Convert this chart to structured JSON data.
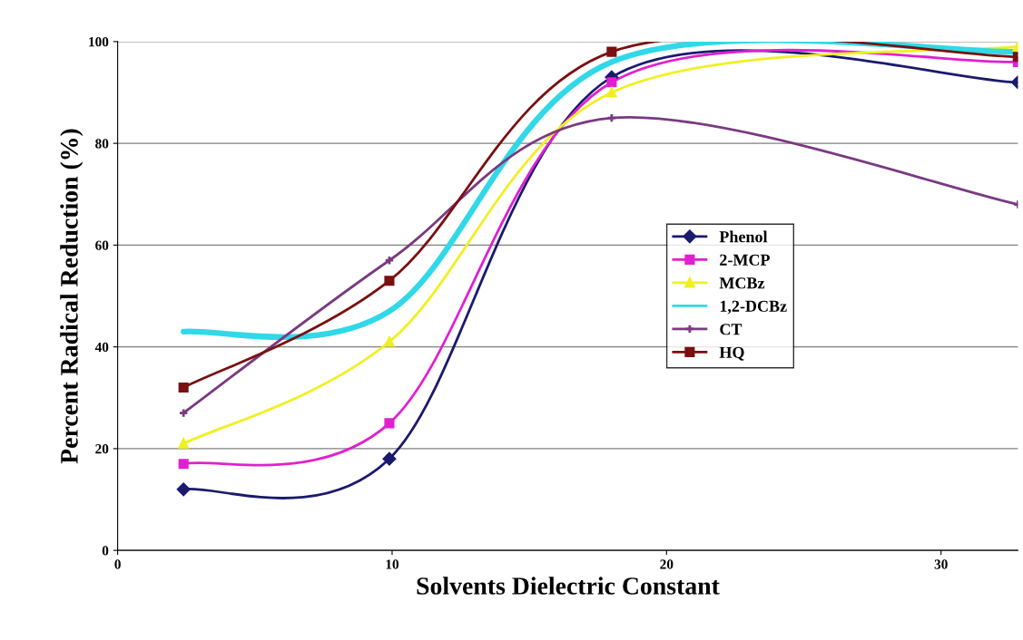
{
  "chart_data": {
    "type": "line",
    "xlabel": "Solvents Dielectric Constant",
    "ylabel": "Percent Radical Reduction (%)",
    "x": [
      2.4,
      9.9,
      18,
      32.8
    ],
    "series": [
      {
        "name": "Phenol",
        "color": "#1a1a6e",
        "marker": "diamond",
        "values": [
          12,
          18,
          93,
          92
        ]
      },
      {
        "name": "2-MCP",
        "color": "#e020d0",
        "marker": "square",
        "values": [
          17,
          25,
          92,
          96
        ]
      },
      {
        "name": "MCBz",
        "color": "#f0f020",
        "marker": "triangle",
        "values": [
          21,
          41,
          90,
          99
        ]
      },
      {
        "name": "1,2-DCBz",
        "color": "#30d8e8",
        "marker": "none",
        "values": [
          43,
          47,
          96,
          98
        ]
      },
      {
        "name": "CT",
        "color": "#7a3a80",
        "marker": "cross",
        "values": [
          27,
          57,
          85,
          68
        ]
      },
      {
        "name": "HQ",
        "color": "#7a1010",
        "marker": "square",
        "values": [
          32,
          53,
          98,
          97
        ]
      }
    ],
    "xlim": [
      0,
      32.8
    ],
    "xticks": [
      0,
      10,
      20,
      30
    ],
    "ylim": [
      0,
      100
    ],
    "yticks": [
      0,
      20,
      40,
      60,
      80,
      100
    ],
    "grid": "y",
    "legend": "right",
    "line_style": "solid"
  }
}
